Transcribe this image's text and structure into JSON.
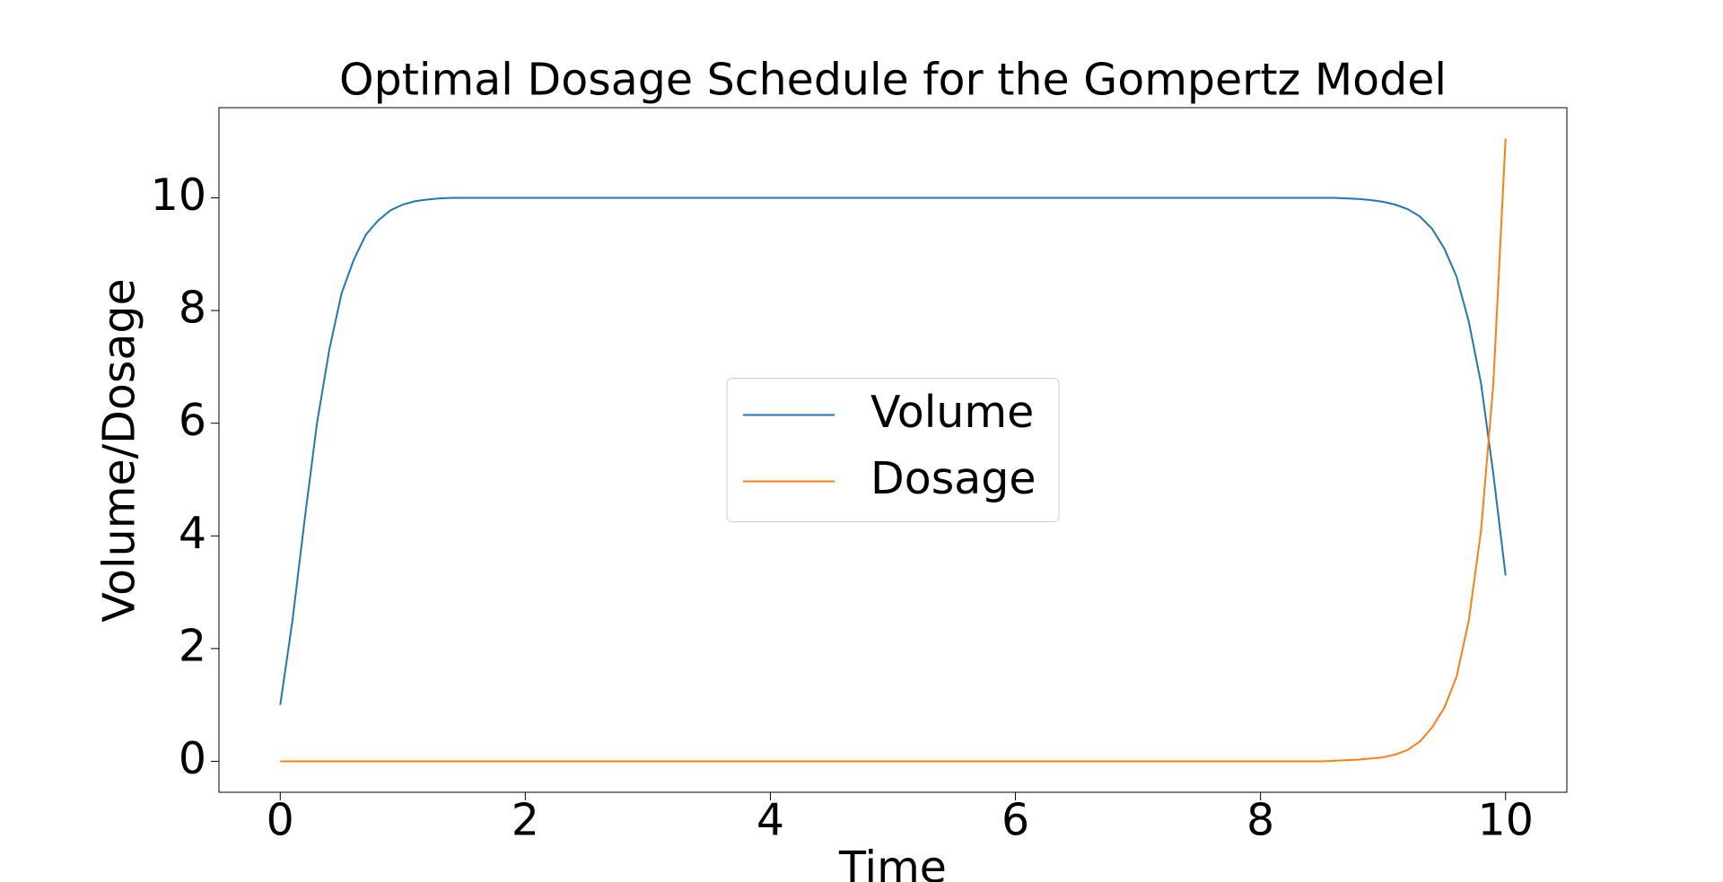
{
  "chart_data": {
    "type": "line",
    "title": "Optimal Dosage Schedule for the Gompertz Model",
    "x_label": "Time",
    "y_label": "Volume/Dosage",
    "x": [
      0,
      0.1,
      0.2,
      0.3,
      0.4,
      0.5,
      0.6,
      0.7,
      0.8,
      0.9,
      1.0,
      1.1,
      1.2,
      1.3,
      1.4,
      1.5,
      2,
      3,
      4,
      5,
      6,
      7,
      8,
      8.5,
      8.6,
      8.7,
      8.8,
      8.9,
      9.0,
      9.1,
      9.2,
      9.3,
      9.4,
      9.5,
      9.6,
      9.7,
      9.8,
      9.9,
      10
    ],
    "series": [
      {
        "name": "Volume",
        "color": "#1f77b4",
        "values": [
          1,
          2.5,
          4.3,
          6,
          7.3,
          8.3,
          8.9,
          9.35,
          9.6,
          9.78,
          9.88,
          9.94,
          9.97,
          9.99,
          10,
          10,
          10,
          10,
          10,
          10,
          10,
          10,
          10,
          10,
          10,
          9.99,
          9.98,
          9.96,
          9.93,
          9.88,
          9.8,
          9.67,
          9.45,
          9.1,
          8.6,
          7.8,
          6.7,
          5.1,
          3.3
        ]
      },
      {
        "name": "Dosage",
        "color": "#ff7f0e",
        "values": [
          0,
          0,
          0,
          0,
          0,
          0,
          0,
          0,
          0,
          0,
          0,
          0,
          0,
          0,
          0,
          0,
          0,
          0,
          0,
          0,
          0,
          0,
          0,
          0,
          0.01,
          0.02,
          0.03,
          0.05,
          0.07,
          0.12,
          0.2,
          0.35,
          0.6,
          0.95,
          1.5,
          2.5,
          4.1,
          6.7,
          11.05
        ]
      }
    ],
    "xlim": [
      -0.5,
      10.5
    ],
    "xticks": [
      0,
      2,
      4,
      6,
      8,
      10
    ],
    "ylim": [
      -0.55,
      11.6
    ],
    "yticks": [
      0,
      2,
      4,
      6,
      8,
      10
    ],
    "grid": false,
    "legend": "center"
  }
}
